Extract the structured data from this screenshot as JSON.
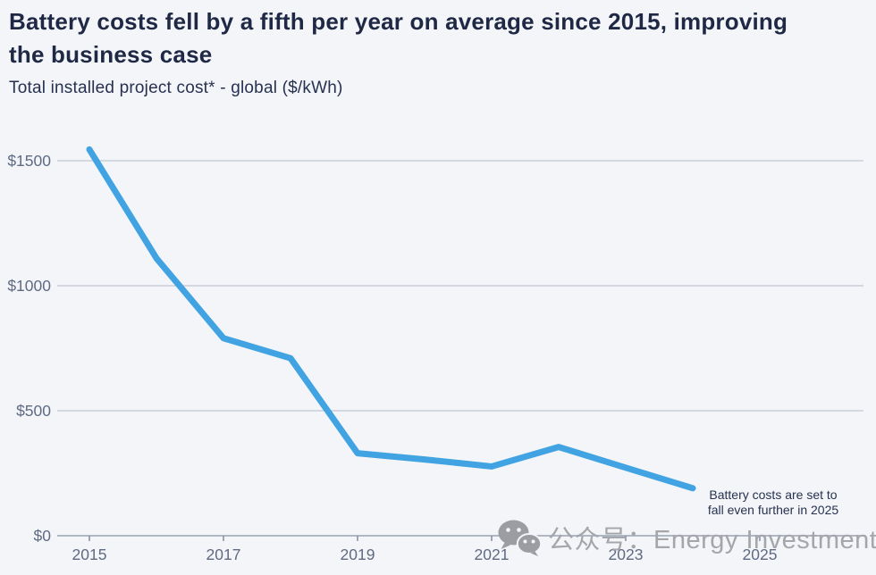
{
  "header": {
    "title": "Battery costs fell by a fifth per year on average since 2015, improving\nthe business case",
    "subtitle": "Total installed project cost* - global ($/kWh)"
  },
  "chart_data": {
    "type": "line",
    "title": "Battery costs fell by a fifth per year on average since 2015, improving the business case",
    "subtitle": "Total installed project cost* - global ($/kWh)",
    "xlabel": "",
    "ylabel": "$/kWh",
    "x": [
      2015,
      2016,
      2017,
      2018,
      2019,
      2020,
      2021,
      2022,
      2023,
      2024
    ],
    "values": [
      1545,
      1110,
      790,
      710,
      330,
      305,
      277,
      355,
      272,
      190
    ],
    "series_name": "Total installed battery project cost (global, $/kWh)",
    "xlim": [
      2015,
      2025
    ],
    "ylim": [
      0,
      1600
    ],
    "y_ticks": [
      0,
      500,
      1000,
      1500
    ],
    "y_tick_labels": [
      "$0",
      "$500",
      "$1000",
      "$1500"
    ],
    "x_tick_years": [
      2015,
      2017,
      2019,
      2021,
      2023,
      2025
    ],
    "x_tick_labels": [
      "2015",
      "2017",
      "2019",
      "2021",
      "2023",
      "2025"
    ],
    "grid": "horizontal-only",
    "legend_position": "none",
    "line_color": "#41a3e2",
    "annotation": "Battery costs are set to\nfall even further in 2025"
  },
  "watermark": {
    "icon": "wechat-icon",
    "text": "公众号：Energy Investment"
  },
  "colors": {
    "background": "#f3f5f9",
    "title_navy": "#1f2945",
    "axis_slate": "#5f6a83",
    "accent_blue": "#41a3e2",
    "watermark_gray": "#a4a6ab"
  }
}
